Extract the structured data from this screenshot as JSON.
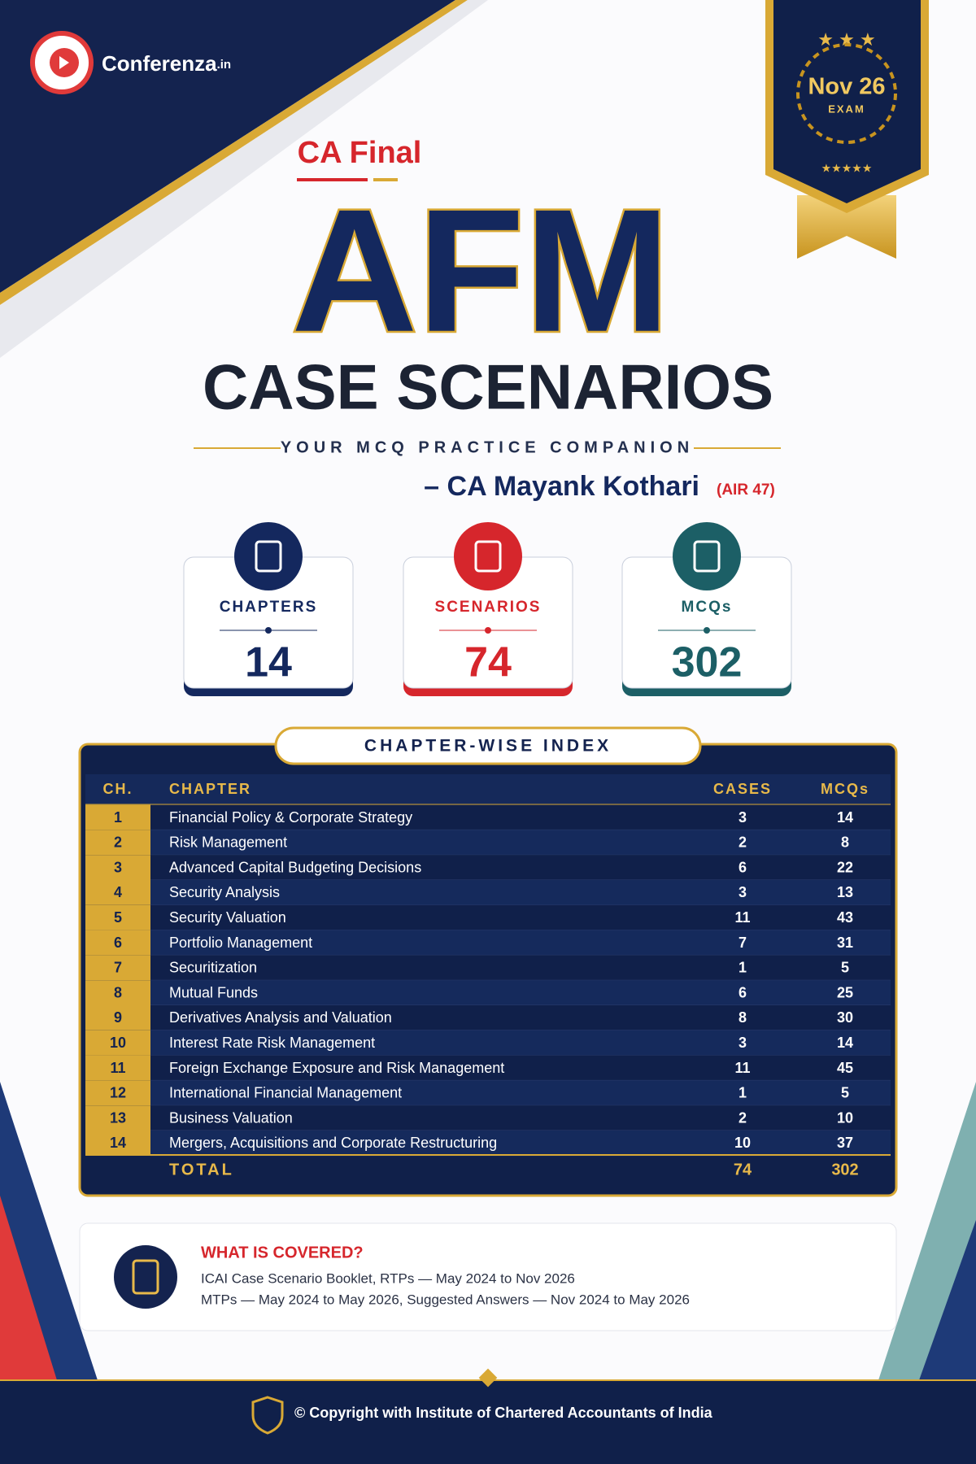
{
  "brand": {
    "name": "Conferenza",
    "suffix": ".in"
  },
  "badge": {
    "date": "Nov 26",
    "label": "EXAM"
  },
  "header": {
    "kicker": "CA Final",
    "title": "AFM",
    "subtitle": "CASE SCENARIOS",
    "tagline": "YOUR MCQ PRACTICE COMPANION",
    "author": "– CA Mayank Kothari",
    "author_note": "(AIR 47)"
  },
  "stats": [
    {
      "label": "CHAPTERS",
      "value": 14
    },
    {
      "label": "SCENARIOS",
      "value": 74
    },
    {
      "label": "MCQs",
      "value": 302
    }
  ],
  "index": {
    "title": "CHAPTER-WISE INDEX",
    "columns": [
      "CH.",
      "CHAPTER",
      "CASES",
      "MCQs"
    ],
    "rows": [
      [
        1,
        "Financial Policy & Corporate Strategy",
        3,
        14
      ],
      [
        2,
        "Risk Management",
        2,
        8
      ],
      [
        3,
        "Advanced Capital Budgeting Decisions",
        6,
        22
      ],
      [
        4,
        "Security Analysis",
        3,
        13
      ],
      [
        5,
        "Security Valuation",
        11,
        43
      ],
      [
        6,
        "Portfolio Management",
        7,
        31
      ],
      [
        7,
        "Securitization",
        1,
        5
      ],
      [
        8,
        "Mutual Funds",
        6,
        25
      ],
      [
        9,
        "Derivatives Analysis and Valuation",
        8,
        30
      ],
      [
        10,
        "Interest Rate Risk Management",
        3,
        14
      ],
      [
        11,
        "Foreign Exchange Exposure and Risk Management",
        11,
        45
      ],
      [
        12,
        "International Financial Management",
        1,
        5
      ],
      [
        13,
        "Business Valuation",
        2,
        10
      ],
      [
        14,
        "Mergers, Acquisitions and Corporate Restructuring",
        10,
        37
      ]
    ],
    "total": {
      "label": "TOTAL",
      "cases": 74,
      "mcqs": 302
    }
  },
  "covered": {
    "title": "WHAT IS COVERED?",
    "lines": [
      "ICAI Case Scenario Booklet, RTPs — May 2024 to Nov 2026",
      "MTPs — May 2024 to May 2026, Suggested Answers — Nov 2024 to May 2026"
    ]
  },
  "footer": {
    "copyright": "© Copyright with Institute of Chartered Accountants of India"
  }
}
